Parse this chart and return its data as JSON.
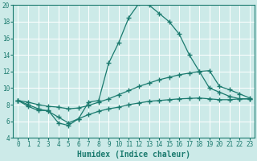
{
  "line1_x": [
    0,
    1,
    2,
    3,
    4,
    5,
    6,
    7,
    8,
    9,
    10,
    11,
    12,
    13,
    14,
    15,
    16,
    17,
    18,
    19,
    20,
    21,
    22,
    23
  ],
  "line1_y": [
    8.5,
    7.8,
    7.3,
    7.3,
    5.8,
    5.5,
    6.3,
    8.3,
    8.5,
    13.0,
    15.5,
    18.5,
    20.2,
    20.0,
    19.0,
    18.0,
    16.5,
    14.0,
    12.0,
    10.0,
    9.5,
    9.0,
    8.7,
    8.7
  ],
  "line2_x": [
    0,
    1,
    2,
    3,
    4,
    5,
    6,
    7,
    8,
    9,
    10,
    11,
    12,
    13,
    14,
    15,
    16,
    17,
    18,
    19,
    20,
    21,
    22,
    23
  ],
  "line2_y": [
    8.5,
    8.3,
    8.0,
    7.8,
    7.7,
    7.5,
    7.6,
    7.9,
    8.3,
    8.7,
    9.2,
    9.7,
    10.2,
    10.6,
    11.0,
    11.3,
    11.6,
    11.8,
    12.0,
    12.1,
    10.2,
    9.8,
    9.3,
    8.8
  ],
  "line3_x": [
    0,
    1,
    2,
    3,
    4,
    5,
    6,
    7,
    8,
    9,
    10,
    11,
    12,
    13,
    14,
    15,
    16,
    17,
    18,
    19,
    20,
    21,
    22,
    23
  ],
  "line3_y": [
    8.5,
    8.0,
    7.5,
    7.2,
    6.5,
    5.8,
    6.3,
    6.8,
    7.2,
    7.5,
    7.7,
    8.0,
    8.2,
    8.4,
    8.5,
    8.6,
    8.7,
    8.75,
    8.8,
    8.7,
    8.6,
    8.6,
    8.7,
    8.7
  ],
  "line_color": "#1a7a6e",
  "marker": "+",
  "markersize": 4,
  "markeredgewidth": 1.0,
  "linewidth": 0.9,
  "xlim": [
    -0.5,
    23.5
  ],
  "ylim": [
    4,
    20
  ],
  "xticks": [
    0,
    1,
    2,
    3,
    4,
    5,
    6,
    7,
    8,
    9,
    10,
    11,
    12,
    13,
    14,
    15,
    16,
    17,
    18,
    19,
    20,
    21,
    22,
    23
  ],
  "yticks": [
    4,
    6,
    8,
    10,
    12,
    14,
    16,
    18,
    20
  ],
  "xlabel": "Humidex (Indice chaleur)",
  "bg_color": "#cceae8",
  "grid_color": "#ffffff",
  "tick_labelsize": 5.5,
  "xlabel_fontsize": 7.0,
  "spine_color": "#1a7a6e"
}
